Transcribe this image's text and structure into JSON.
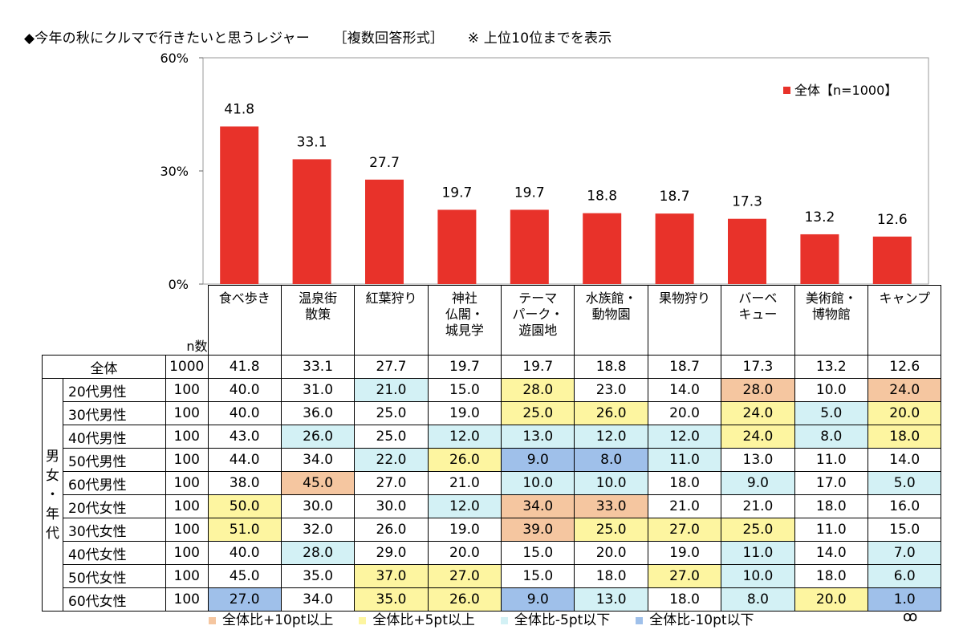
{
  "title": {
    "main": "◆今年の秋にクルマで行きたいと思うレジャー",
    "format": "［複数回答形式］",
    "note": "※ 上位10位までを表示"
  },
  "chart_data": {
    "type": "bar",
    "ylim": [
      0,
      60
    ],
    "yticks": [
      "60%",
      "30%",
      "0%"
    ],
    "legend": "全体【n=1000】",
    "categories": [
      "食べ歩き",
      "温泉街散策",
      "紅葉狩り",
      "神社仏閣・城見学",
      "テーマパーク・遊園地",
      "水族館・動物園",
      "果物狩り",
      "バーベキュー",
      "美術館・博物館",
      "キャンプ"
    ],
    "category_lines": [
      [
        "食べ歩き"
      ],
      [
        "温泉街",
        "散策"
      ],
      [
        "紅葉狩り"
      ],
      [
        "神社",
        "仏閣・",
        "城見学"
      ],
      [
        "テーマ",
        "パーク・",
        "遊園地"
      ],
      [
        "水族館・",
        "動物園"
      ],
      [
        "果物狩り"
      ],
      [
        "バーベ",
        "キュー"
      ],
      [
        "美術館・",
        "博物館"
      ],
      [
        "キャンプ"
      ]
    ],
    "values": [
      41.8,
      33.1,
      27.7,
      19.7,
      19.7,
      18.8,
      18.7,
      17.3,
      13.2,
      12.6
    ],
    "value_labels": [
      "41.8",
      "33.1",
      "27.7",
      "19.7",
      "19.7",
      "18.8",
      "18.7",
      "17.3",
      "13.2",
      "12.6"
    ],
    "bar_color": "#e8322a"
  },
  "table": {
    "n_header": "n数",
    "group_label": "男女・年代",
    "total": {
      "label": "全体",
      "n": "1000",
      "values": [
        "41.8",
        "33.1",
        "27.7",
        "19.7",
        "19.7",
        "18.8",
        "18.7",
        "17.3",
        "13.2",
        "12.6"
      ]
    },
    "rows": [
      {
        "label": "20代男性",
        "n": "100",
        "values": [
          "40.0",
          "31.0",
          "21.0",
          "15.0",
          "28.0",
          "23.0",
          "14.0",
          "28.0",
          "10.0",
          "24.0"
        ],
        "hl": [
          "",
          "",
          "c",
          "",
          "y",
          "",
          "",
          "o",
          "",
          "o"
        ]
      },
      {
        "label": "30代男性",
        "n": "100",
        "values": [
          "40.0",
          "36.0",
          "25.0",
          "19.0",
          "25.0",
          "26.0",
          "20.0",
          "24.0",
          "5.0",
          "20.0"
        ],
        "hl": [
          "",
          "",
          "",
          "",
          "y",
          "y",
          "",
          "y",
          "c",
          "y"
        ]
      },
      {
        "label": "40代男性",
        "n": "100",
        "values": [
          "43.0",
          "26.0",
          "25.0",
          "12.0",
          "13.0",
          "12.0",
          "12.0",
          "24.0",
          "8.0",
          "18.0"
        ],
        "hl": [
          "",
          "c",
          "",
          "c",
          "c",
          "c",
          "c",
          "y",
          "c",
          "y"
        ]
      },
      {
        "label": "50代男性",
        "n": "100",
        "values": [
          "44.0",
          "34.0",
          "22.0",
          "26.0",
          "9.0",
          "8.0",
          "11.0",
          "13.0",
          "11.0",
          "14.0"
        ],
        "hl": [
          "",
          "",
          "c",
          "y",
          "b",
          "b",
          "c",
          "",
          "",
          ""
        ]
      },
      {
        "label": "60代男性",
        "n": "100",
        "values": [
          "38.0",
          "45.0",
          "27.0",
          "21.0",
          "10.0",
          "10.0",
          "18.0",
          "9.0",
          "17.0",
          "5.0"
        ],
        "hl": [
          "",
          "o",
          "",
          "",
          "c",
          "c",
          "",
          "c",
          "",
          "c"
        ]
      },
      {
        "label": "20代女性",
        "n": "100",
        "values": [
          "50.0",
          "30.0",
          "30.0",
          "12.0",
          "34.0",
          "33.0",
          "21.0",
          "21.0",
          "18.0",
          "16.0"
        ],
        "hl": [
          "y",
          "",
          "",
          "c",
          "o",
          "o",
          "",
          "",
          "",
          ""
        ]
      },
      {
        "label": "30代女性",
        "n": "100",
        "values": [
          "51.0",
          "32.0",
          "26.0",
          "19.0",
          "39.0",
          "25.0",
          "27.0",
          "25.0",
          "11.0",
          "15.0"
        ],
        "hl": [
          "y",
          "",
          "",
          "",
          "o",
          "y",
          "y",
          "y",
          "",
          ""
        ]
      },
      {
        "label": "40代女性",
        "n": "100",
        "values": [
          "40.0",
          "28.0",
          "29.0",
          "20.0",
          "15.0",
          "20.0",
          "19.0",
          "11.0",
          "14.0",
          "7.0"
        ],
        "hl": [
          "",
          "c",
          "",
          "",
          "",
          "",
          "",
          "c",
          "",
          "c"
        ]
      },
      {
        "label": "50代女性",
        "n": "100",
        "values": [
          "45.0",
          "35.0",
          "37.0",
          "27.0",
          "15.0",
          "18.0",
          "27.0",
          "10.0",
          "18.0",
          "6.0"
        ],
        "hl": [
          "",
          "",
          "y",
          "y",
          "",
          "",
          "y",
          "c",
          "",
          "c"
        ]
      },
      {
        "label": "60代女性",
        "n": "100",
        "values": [
          "27.0",
          "34.0",
          "35.0",
          "26.0",
          "9.0",
          "13.0",
          "18.0",
          "8.0",
          "20.0",
          "1.0"
        ],
        "hl": [
          "b",
          "",
          "y",
          "y",
          "b",
          "c",
          "",
          "c",
          "y",
          "b"
        ]
      }
    ]
  },
  "highlight_colors": {
    "o": "#f5c6a0",
    "y": "#fdf5a0",
    "c": "#d3f1f5",
    "b": "#9fc0ea"
  },
  "legend": [
    {
      "key": "o",
      "label": "全体比+10pt以上"
    },
    {
      "key": "y",
      "label": "全体比+5pt以上"
    },
    {
      "key": "c",
      "label": "全体比-5pt以下"
    },
    {
      "key": "b",
      "label": "全体比-10pt以下"
    }
  ],
  "logo_icon": "brand-logo-icon"
}
